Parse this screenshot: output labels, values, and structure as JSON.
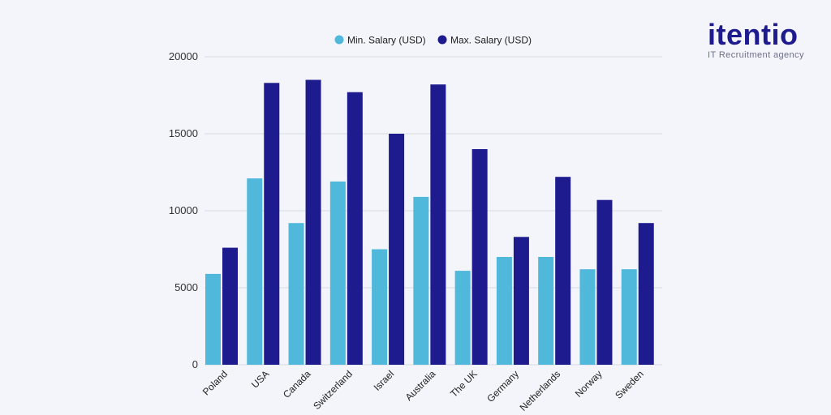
{
  "brand": {
    "name": "itentio",
    "tagline": "IT Recruitment agency",
    "color": "#1e1b8e"
  },
  "chart_data": {
    "type": "bar",
    "title": "",
    "xlabel": "",
    "ylabel": "",
    "categories": [
      "Poland",
      "USA",
      "Canada",
      "Switzerland",
      "Israel",
      "Australia",
      "The UK",
      "Germany",
      "Netherlands",
      "Norway",
      "Sweden"
    ],
    "series": [
      {
        "name": "Min. Salary (USD)",
        "color": "#4fb8db",
        "values": [
          5900,
          12100,
          9200,
          11900,
          7500,
          10900,
          6100,
          7000,
          7000,
          6200,
          6200
        ]
      },
      {
        "name": "Max. Salary (USD)",
        "color": "#1e1b8e",
        "values": [
          7600,
          18300,
          18500,
          17700,
          15000,
          18200,
          14000,
          8300,
          12200,
          10700,
          9200
        ]
      }
    ],
    "ylim": [
      0,
      20000
    ],
    "yticks": [
      0,
      5000,
      10000,
      15000,
      20000
    ],
    "grid": true,
    "legend_position": "top"
  }
}
